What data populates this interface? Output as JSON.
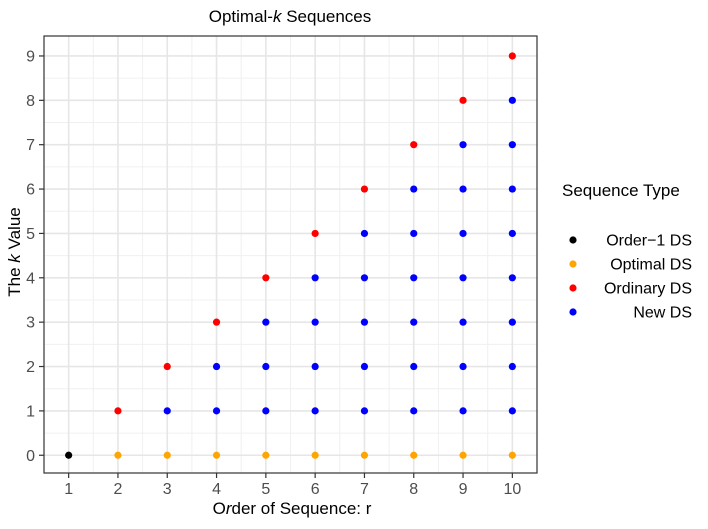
{
  "chart_data": {
    "type": "scatter",
    "title": "Optimal-k Sequences",
    "xlabel": "Order of Sequence: r",
    "ylabel": "The k Value",
    "xlim": [
      0.5,
      10.5
    ],
    "ylim": [
      -0.4,
      9.45
    ],
    "x_ticks": [
      1,
      2,
      3,
      4,
      5,
      6,
      7,
      8,
      9,
      10
    ],
    "y_ticks": [
      0,
      1,
      2,
      3,
      4,
      5,
      6,
      7,
      8,
      9
    ],
    "grid": true,
    "legend": {
      "title": "Sequence Type",
      "position": "right"
    },
    "series": [
      {
        "name": "Order-1 DS",
        "color": "#000000",
        "points": [
          [
            1,
            0
          ]
        ]
      },
      {
        "name": "Optimal DS",
        "color": "#FFA500",
        "points": [
          [
            2,
            0
          ],
          [
            3,
            0
          ],
          [
            4,
            0
          ],
          [
            5,
            0
          ],
          [
            6,
            0
          ],
          [
            7,
            0
          ],
          [
            8,
            0
          ],
          [
            9,
            0
          ],
          [
            10,
            0
          ]
        ]
      },
      {
        "name": "Ordinary DS",
        "color": "#FF0000",
        "points": [
          [
            2,
            1
          ],
          [
            3,
            2
          ],
          [
            4,
            3
          ],
          [
            5,
            4
          ],
          [
            6,
            5
          ],
          [
            7,
            6
          ],
          [
            8,
            7
          ],
          [
            9,
            8
          ],
          [
            10,
            9
          ]
        ]
      },
      {
        "name": "New DS",
        "color": "#0000FF",
        "points": [
          [
            3,
            1
          ],
          [
            4,
            1
          ],
          [
            4,
            2
          ],
          [
            5,
            1
          ],
          [
            5,
            2
          ],
          [
            5,
            3
          ],
          [
            6,
            1
          ],
          [
            6,
            2
          ],
          [
            6,
            3
          ],
          [
            6,
            4
          ],
          [
            7,
            1
          ],
          [
            7,
            2
          ],
          [
            7,
            3
          ],
          [
            7,
            4
          ],
          [
            7,
            5
          ],
          [
            8,
            1
          ],
          [
            8,
            2
          ],
          [
            8,
            3
          ],
          [
            8,
            4
          ],
          [
            8,
            5
          ],
          [
            8,
            6
          ],
          [
            9,
            1
          ],
          [
            9,
            2
          ],
          [
            9,
            3
          ],
          [
            9,
            4
          ],
          [
            9,
            5
          ],
          [
            9,
            6
          ],
          [
            9,
            7
          ],
          [
            10,
            1
          ],
          [
            10,
            2
          ],
          [
            10,
            3
          ],
          [
            10,
            4
          ],
          [
            10,
            5
          ],
          [
            10,
            6
          ],
          [
            10,
            7
          ],
          [
            10,
            8
          ]
        ]
      }
    ]
  }
}
